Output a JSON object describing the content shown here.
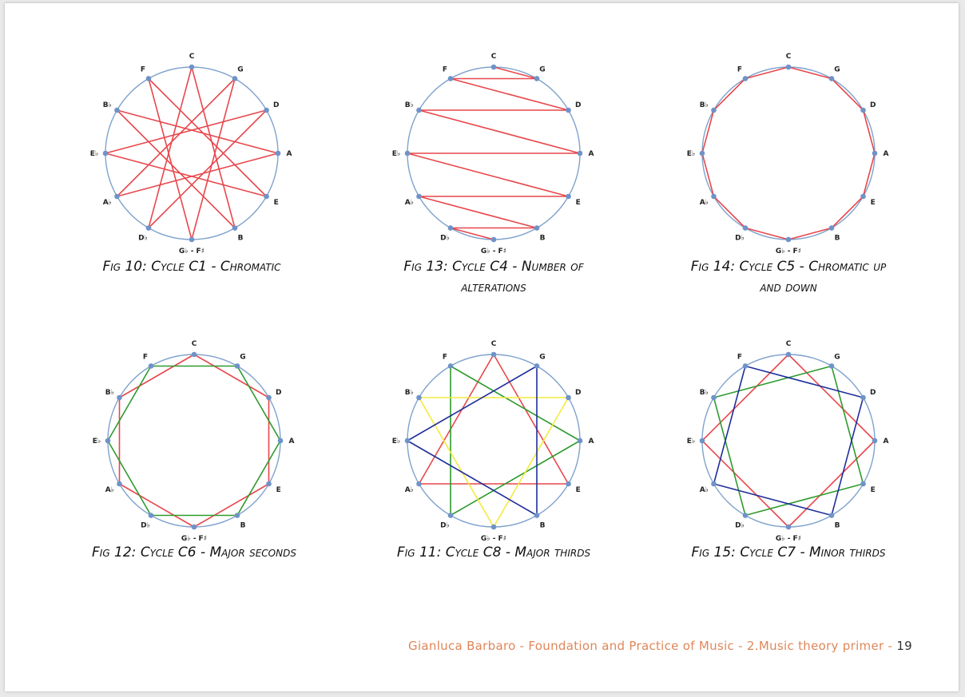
{
  "note_labels": [
    "C",
    "G",
    "D",
    "A",
    "E",
    "B",
    "G♭ - F♯",
    "D♭",
    "A♭",
    "E♭",
    "B♭",
    "F"
  ],
  "figures": [
    {
      "caption_lines": [
        "Fig 10: Cycle C1 - Chromatic"
      ],
      "paths": [
        {
          "color": "#e8474c",
          "sequence": [
            "C",
            "D♭",
            "D",
            "E♭",
            "E",
            "F",
            "G♭ - F♯",
            "G",
            "A♭",
            "A",
            "B♭",
            "B",
            "C"
          ]
        }
      ]
    },
    {
      "caption_lines": [
        "Fig 13: Cycle C4 - Number of",
        "alterations"
      ],
      "paths": [
        {
          "color": "#e8474c",
          "sequence": [
            "G♭ - F♯",
            "D♭",
            "B",
            "A♭",
            "E",
            "E♭",
            "A",
            "B♭",
            "D",
            "F",
            "G",
            "C"
          ]
        }
      ]
    },
    {
      "caption_lines": [
        "Fig 14: Cycle C5 - Chromatic up",
        "and down"
      ],
      "paths": [
        {
          "color": "#e8474c",
          "sequence": [
            "C",
            "F",
            "B♭",
            "E♭",
            "A♭",
            "D♭",
            "G♭ - F♯",
            "B",
            "E",
            "A",
            "D",
            "G",
            "C"
          ]
        }
      ]
    },
    {
      "caption_lines": [
        "Fig 12: Cycle C6 - Major seconds"
      ],
      "paths": [
        {
          "color": "#e8474c",
          "sequence": [
            "C",
            "D",
            "E",
            "G♭ - F♯",
            "A♭",
            "B♭",
            "C"
          ]
        },
        {
          "color": "#2f9a2f",
          "sequence": [
            "G",
            "A",
            "B",
            "D♭",
            "E♭",
            "F",
            "G"
          ]
        }
      ]
    },
    {
      "caption_lines": [
        "Fig 11: Cycle C8 - Major thirds"
      ],
      "paths": [
        {
          "color": "#e8474c",
          "sequence": [
            "C",
            "E",
            "A♭",
            "C"
          ]
        },
        {
          "color": "#2f9a2f",
          "sequence": [
            "F",
            "A",
            "D♭",
            "F"
          ]
        },
        {
          "color": "#f4ea3c",
          "sequence": [
            "B♭",
            "D",
            "G♭ - F♯",
            "B♭"
          ]
        },
        {
          "color": "#1f2f9a",
          "sequence": [
            "E♭",
            "G",
            "B",
            "E♭"
          ]
        }
      ]
    },
    {
      "caption_lines": [
        "Fig 15: Cycle C7 - Minor thirds"
      ],
      "paths": [
        {
          "color": "#e8474c",
          "sequence": [
            "C",
            "E♭",
            "G♭ - F♯",
            "A",
            "C"
          ]
        },
        {
          "color": "#2f9a2f",
          "sequence": [
            "G",
            "B♭",
            "D♭",
            "E",
            "G"
          ]
        },
        {
          "color": "#1f2f9a",
          "sequence": [
            "F",
            "D",
            "B",
            "A♭",
            "F"
          ]
        }
      ]
    }
  ],
  "footer": {
    "text": "Gianluca Barbaro - Foundation and Practice of Music - 2.Music theory primer - ",
    "page_number": "19"
  },
  "colors": {
    "circle": "#7fa2cc",
    "node": "#6f93c8"
  }
}
